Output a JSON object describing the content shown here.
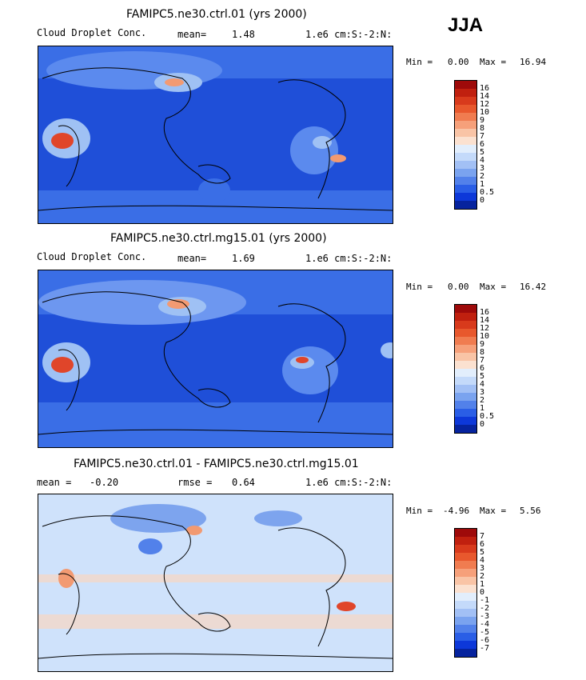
{
  "season": "JJA",
  "panels": [
    {
      "title": "FAMIPC5.ne30.ctrl.01 (yrs 2000)",
      "variable": "Cloud Droplet Conc.",
      "stat_label": "mean=",
      "stat_value": "1.48",
      "units": "1.e6 cm:S:-2:N:",
      "min_label": "Min =",
      "min_value": "0.00",
      "max_label": "Max =",
      "max_value": "16.94"
    },
    {
      "title": "FAMIPC5.ne30.ctrl.mg15.01 (yrs 2000)",
      "variable": "Cloud Droplet Conc.",
      "stat_label": "mean=",
      "stat_value": "1.69",
      "units": "1.e6 cm:S:-2:N:",
      "min_label": "Min =",
      "min_value": "0.00",
      "max_label": "Max =",
      "max_value": "16.42"
    },
    {
      "title": "FAMIPC5.ne30.ctrl.01 - FAMIPC5.ne30.ctrl.mg15.01",
      "mean_label": "mean =",
      "mean_value": "-0.20",
      "rmse_label": "rmse =",
      "rmse_value": "0.64",
      "units": "1.e6 cm:S:-2:N:",
      "min_label": "Min =",
      "min_value": "-4.96",
      "max_label": "Max =",
      "max_value": "5.56"
    }
  ],
  "colorbars": {
    "absolute": {
      "labels": [
        "16",
        "14",
        "12",
        "10",
        "9",
        "8",
        "7",
        "6",
        "5",
        "4",
        "3",
        "2",
        "1",
        "0.5",
        "0"
      ],
      "colors": [
        "#9e0a0a",
        "#c0200f",
        "#d83a1c",
        "#e8582d",
        "#f07c50",
        "#f6a07a",
        "#f9c4a6",
        "#fbe1d0",
        "#e2eefc",
        "#c4dafa",
        "#a2c0f5",
        "#7aa3ef",
        "#5281ea",
        "#2a5ee6",
        "#0d38d9",
        "#06239e"
      ]
    },
    "difference": {
      "labels": [
        "7",
        "6",
        "5",
        "4",
        "3",
        "2",
        "1",
        "0",
        "-1",
        "-2",
        "-3",
        "-4",
        "-5",
        "-6",
        "-7"
      ],
      "colors": [
        "#9e0a0a",
        "#c0200f",
        "#d83a1c",
        "#e8582d",
        "#f07c50",
        "#f6a07a",
        "#f9c4a6",
        "#fbe1d0",
        "#e2eefc",
        "#c4dafa",
        "#a2c0f5",
        "#7aa3ef",
        "#5281ea",
        "#2a5ee6",
        "#0d38d9",
        "#06239e"
      ]
    }
  },
  "map_colors": {
    "ocean_low": "#1f4fd8",
    "ocean_mid": "#3a6ee6",
    "high_1": "#9fc1f4",
    "high_2": "#e8f0fc",
    "hot_1": "#f29a72",
    "hot_2": "#e0452a",
    "diff_bg": "#cfe2fb",
    "diff_pos": "#f8d7c2",
    "diff_neg": "#7da4ee"
  }
}
